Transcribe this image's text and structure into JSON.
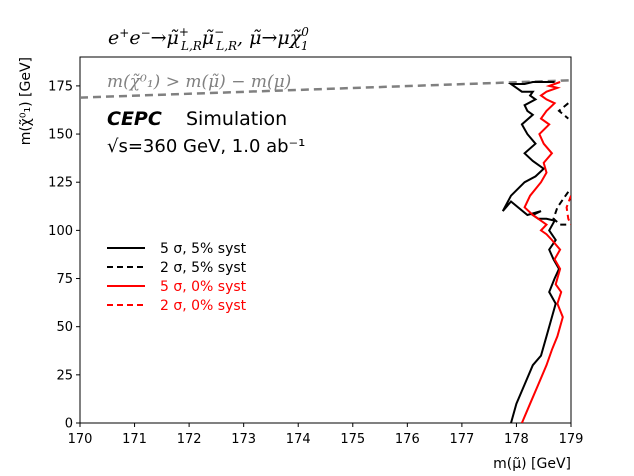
{
  "chart_data": {
    "type": "line",
    "title": "e⁺e⁻→μ̃⁺ L,R μ̃⁻ L,R , μ̃→μχ̃⁰₁",
    "xlabel": "m(μ̃) [GeV]",
    "ylabel": "m(χ̃⁰₁) [GeV]",
    "xlim": [
      170,
      179
    ],
    "ylim": [
      0,
      190
    ],
    "xticks": [
      "170",
      "171",
      "172",
      "173",
      "174",
      "175",
      "176",
      "177",
      "178",
      "179"
    ],
    "yticks": [
      "0",
      "25",
      "50",
      "75",
      "100",
      "125",
      "150",
      "175"
    ],
    "experiment_label": "CEPC",
    "simulation_label": "Simulation",
    "energy_label": "√s=360 GeV, 1.0 ab⁻¹",
    "constraint_label": "m(χ̃⁰₁) > m(μ̃) − m(μ)",
    "colors": {
      "black": "#000000",
      "red": "#ff0000",
      "gray": "#808080"
    },
    "series": [
      {
        "name": "5 σ, 5% syst",
        "color": "#000000",
        "style": "solid",
        "x": [
          177.9,
          178.0,
          178.15,
          178.3,
          178.45,
          178.55,
          178.65,
          178.72,
          178.6,
          178.7,
          178.78,
          178.68,
          178.6,
          178.72,
          178.6,
          178.7,
          178.55,
          178.4,
          178.3,
          178.45,
          178.2,
          177.9,
          177.75,
          177.9,
          178.15,
          178.35,
          178.5,
          178.3,
          178.15,
          178.35,
          178.2,
          178.1,
          178.3,
          178.2,
          178.15,
          178.35,
          178.25,
          178.3,
          178.1,
          178.0,
          177.9,
          178.15,
          178.3,
          178.45,
          178.7
        ],
        "y": [
          0,
          10,
          20,
          30,
          35,
          45,
          55,
          62,
          68,
          75,
          80,
          85,
          90,
          95,
          100,
          105,
          106,
          106,
          108,
          110,
          108,
          115,
          110,
          118,
          125,
          128,
          132,
          136,
          140,
          145,
          150,
          155,
          160,
          162,
          165,
          168,
          170,
          172,
          172,
          174,
          176,
          176,
          177,
          177,
          177
        ]
      },
      {
        "name": "2 σ, 5% syst",
        "color": "#000000",
        "style": "dashed",
        "x": [
          178.95,
          178.75,
          178.68,
          178.8,
          178.95
        ],
        "y": [
          120,
          112,
          106,
          103,
          103
        ],
        "x2": [
          178.95,
          178.78,
          178.95
        ],
        "y2": [
          166,
          162,
          158
        ]
      },
      {
        "name": "5 σ, 0% syst",
        "color": "#ff0000",
        "style": "solid",
        "x": [
          178.1,
          178.25,
          178.4,
          178.55,
          178.65,
          178.75,
          178.85,
          178.75,
          178.82,
          178.72,
          178.8,
          178.7,
          178.8,
          178.65,
          178.55,
          178.45,
          178.55,
          178.3,
          178.15,
          178.25,
          178.45,
          178.55,
          178.5,
          178.65,
          178.5,
          178.42,
          178.6,
          178.45,
          178.55,
          178.7,
          178.55,
          178.45,
          178.55,
          178.75,
          178.6,
          178.8
        ],
        "y": [
          0,
          10,
          20,
          30,
          38,
          45,
          55,
          62,
          68,
          72,
          80,
          85,
          90,
          95,
          98,
          100,
          103,
          108,
          112,
          118,
          125,
          130,
          135,
          140,
          145,
          150,
          155,
          158,
          162,
          166,
          168,
          170,
          172,
          174,
          175,
          177
        ]
      },
      {
        "name": "2 σ, 0% syst",
        "color": "#ff0000",
        "style": "dashed",
        "x": [
          179.0,
          178.92,
          178.95,
          179.0
        ],
        "y": [
          118,
          112,
          106,
          103
        ]
      }
    ],
    "constraint_line": {
      "color": "#808080",
      "style": "dashed",
      "x": [
        170,
        179
      ],
      "y": [
        168.9,
        177.9
      ]
    },
    "legend": {
      "position": "center-left",
      "entries": [
        {
          "label": "5 σ, 5% syst",
          "color": "#000000",
          "style": "solid"
        },
        {
          "label": "2 σ, 5% syst",
          "color": "#000000",
          "style": "dashed"
        },
        {
          "label": "5 σ, 0% syst",
          "color": "#ff0000",
          "style": "solid"
        },
        {
          "label": "2 σ, 0% syst",
          "color": "#ff0000",
          "style": "dashed"
        }
      ]
    }
  }
}
